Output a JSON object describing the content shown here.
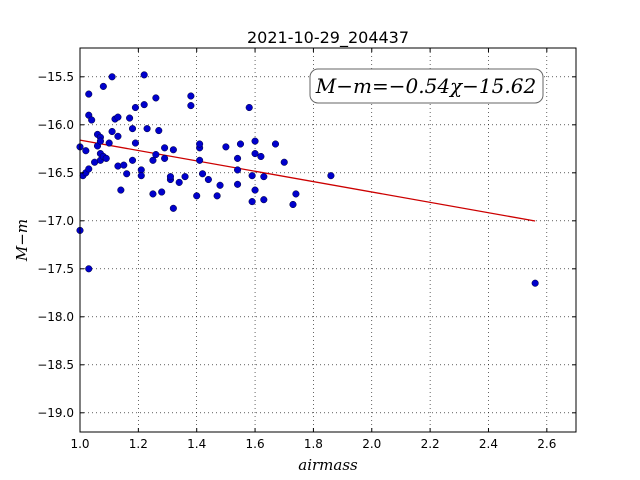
{
  "chart_data": {
    "type": "scatter",
    "title": "2021-10-29_204437",
    "xlabel": "airmass",
    "ylabel": "M−m",
    "xlim": [
      1.0,
      2.7
    ],
    "ylim": [
      -15.2,
      -19.2
    ],
    "y_inverted": true,
    "grid": true,
    "grid_style": "dotted",
    "x_ticks": [
      1.0,
      1.2,
      1.4,
      1.6,
      1.8,
      2.0,
      2.2,
      2.4,
      2.6
    ],
    "x_tick_labels": [
      "1.0",
      "1.2",
      "1.4",
      "1.6",
      "1.8",
      "2.0",
      "2.2",
      "2.4",
      "2.6"
    ],
    "y_ticks": [
      -15.5,
      -16.0,
      -16.5,
      -17.0,
      -17.5,
      -18.0,
      -18.5,
      -19.0
    ],
    "y_tick_labels": [
      "−15.5",
      "−16.0",
      "−16.5",
      "−17.0",
      "−17.5",
      "−18.0",
      "−18.5",
      "−19.0"
    ],
    "annotation": "M−m=−0.54χ−15.62",
    "annotation_placement": "top-right",
    "point_color": "#0000cc",
    "fit_color": "#cc0000",
    "fit_line": {
      "slope": -0.54,
      "intercept": -15.62,
      "x_range": [
        1.0,
        2.56
      ]
    },
    "points": [
      [
        1.0,
        -16.23
      ],
      [
        1.0,
        -17.1
      ],
      [
        1.01,
        -16.53
      ],
      [
        1.02,
        -16.5
      ],
      [
        1.02,
        -16.27
      ],
      [
        1.03,
        -16.46
      ],
      [
        1.03,
        -15.9
      ],
      [
        1.03,
        -15.68
      ],
      [
        1.03,
        -17.5
      ],
      [
        1.04,
        -15.95
      ],
      [
        1.05,
        -16.39
      ],
      [
        1.06,
        -16.1
      ],
      [
        1.06,
        -16.22
      ],
      [
        1.07,
        -16.13
      ],
      [
        1.07,
        -16.17
      ],
      [
        1.07,
        -16.3
      ],
      [
        1.07,
        -16.37
      ],
      [
        1.08,
        -16.33
      ],
      [
        1.08,
        -15.6
      ],
      [
        1.09,
        -16.35
      ],
      [
        1.1,
        -16.19
      ],
      [
        1.11,
        -15.5
      ],
      [
        1.11,
        -16.07
      ],
      [
        1.12,
        -15.94
      ],
      [
        1.13,
        -16.12
      ],
      [
        1.13,
        -15.92
      ],
      [
        1.13,
        -16.43
      ],
      [
        1.14,
        -16.68
      ],
      [
        1.15,
        -16.42
      ],
      [
        1.16,
        -16.51
      ],
      [
        1.17,
        -15.93
      ],
      [
        1.18,
        -16.04
      ],
      [
        1.18,
        -16.37
      ],
      [
        1.19,
        -16.19
      ],
      [
        1.19,
        -15.82
      ],
      [
        1.21,
        -16.47
      ],
      [
        1.21,
        -16.53
      ],
      [
        1.22,
        -15.48
      ],
      [
        1.22,
        -15.79
      ],
      [
        1.23,
        -16.04
      ],
      [
        1.25,
        -16.72
      ],
      [
        1.25,
        -16.37
      ],
      [
        1.26,
        -16.31
      ],
      [
        1.26,
        -15.72
      ],
      [
        1.27,
        -16.06
      ],
      [
        1.28,
        -16.7
      ],
      [
        1.29,
        -16.24
      ],
      [
        1.29,
        -16.35
      ],
      [
        1.31,
        -16.57
      ],
      [
        1.31,
        -16.54
      ],
      [
        1.32,
        -16.87
      ],
      [
        1.32,
        -16.26
      ],
      [
        1.34,
        -16.6
      ],
      [
        1.36,
        -16.54
      ],
      [
        1.38,
        -15.7
      ],
      [
        1.38,
        -15.8
      ],
      [
        1.4,
        -16.74
      ],
      [
        1.41,
        -16.24
      ],
      [
        1.41,
        -16.2
      ],
      [
        1.41,
        -16.37
      ],
      [
        1.42,
        -16.51
      ],
      [
        1.44,
        -16.57
      ],
      [
        1.47,
        -16.74
      ],
      [
        1.48,
        -16.63
      ],
      [
        1.5,
        -16.23
      ],
      [
        1.54,
        -16.35
      ],
      [
        1.54,
        -16.47
      ],
      [
        1.54,
        -16.62
      ],
      [
        1.55,
        -16.2
      ],
      [
        1.58,
        -15.82
      ],
      [
        1.59,
        -16.53
      ],
      [
        1.59,
        -16.8
      ],
      [
        1.6,
        -16.68
      ],
      [
        1.6,
        -16.17
      ],
      [
        1.6,
        -16.3
      ],
      [
        1.62,
        -16.33
      ],
      [
        1.63,
        -16.78
      ],
      [
        1.63,
        -16.54
      ],
      [
        1.67,
        -16.2
      ],
      [
        1.7,
        -16.39
      ],
      [
        1.73,
        -16.83
      ],
      [
        1.74,
        -16.72
      ],
      [
        1.86,
        -16.53
      ],
      [
        2.56,
        -17.65
      ]
    ]
  }
}
